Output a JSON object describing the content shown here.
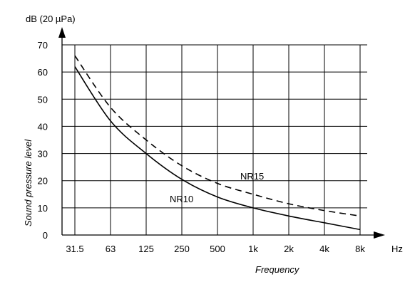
{
  "chart_data": {
    "type": "line",
    "title": "",
    "y_unit_label": "dB (20 µPa)",
    "x_unit_label": "Hz",
    "xlabel": "Frequency",
    "ylabel": "Sound pressure level",
    "categories": [
      "31.5",
      "63",
      "125",
      "250",
      "500",
      "1k",
      "2k",
      "4k",
      "8k"
    ],
    "yticks": [
      0,
      10,
      20,
      30,
      40,
      50,
      60,
      70
    ],
    "ylim": [
      0,
      70
    ],
    "grid": true,
    "series": [
      {
        "name": "NR10",
        "style": "solid",
        "color": "#000000",
        "values": [
          62,
          42,
          30,
          20.5,
          14,
          10,
          7,
          4.5,
          2
        ]
      },
      {
        "name": "NR15",
        "style": "dashed",
        "color": "#000000",
        "values": [
          66,
          47,
          35,
          25.5,
          19,
          15,
          11.5,
          9,
          7
        ]
      }
    ]
  }
}
